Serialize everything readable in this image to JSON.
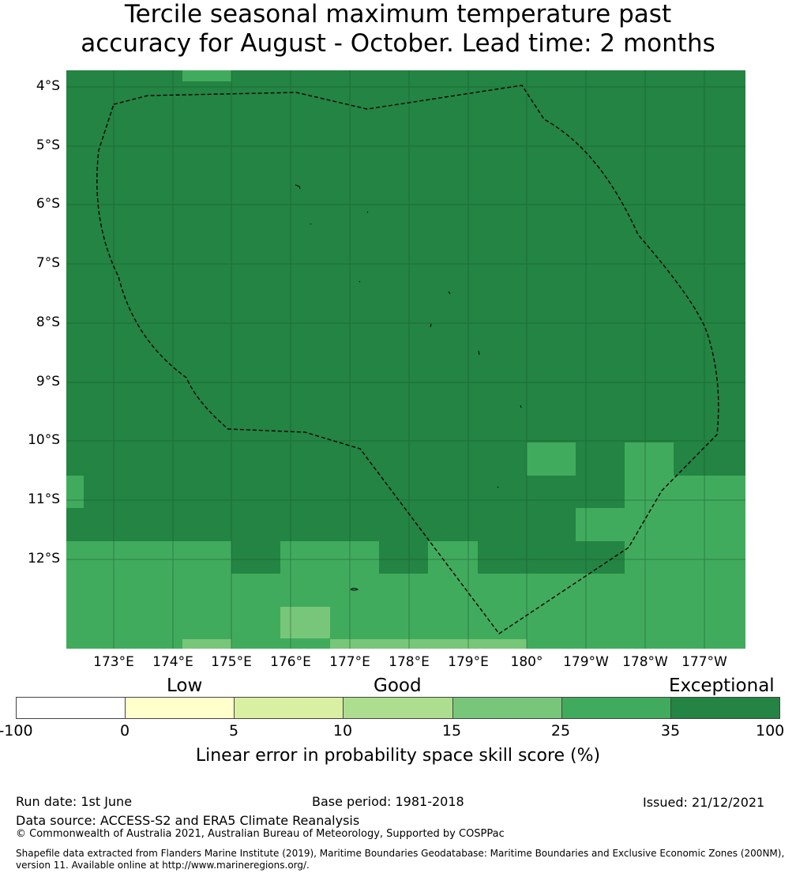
{
  "title": {
    "line1": "Tercile seasonal maximum temperature past",
    "line2": "accuracy for August - October. Lead time: 2 months"
  },
  "map": {
    "latitude_labels": [
      "4°S",
      "5°S",
      "6°S",
      "7°S",
      "8°S",
      "9°S",
      "10°S",
      "11°S",
      "12°S"
    ],
    "longitude_labels": [
      "173°E",
      "174°E",
      "175°E",
      "176°E",
      "177°E",
      "178°E",
      "179°E",
      "180°",
      "179°W",
      "178°W",
      "177°W"
    ],
    "colors": {
      "exceptional": "#238443",
      "band_25_35": "#41ab5d",
      "band_15_25": "#78c679",
      "gridline": "#1a5c2e",
      "eez_boundary": "#000000"
    }
  },
  "legend": {
    "categories": [
      "Low",
      "Good",
      "Exceptional"
    ],
    "ticks": [
      "-100",
      "0",
      "5",
      "10",
      "15",
      "25",
      "35",
      "100"
    ],
    "colors": [
      "#ffffff",
      "#ffffcc",
      "#d9f0a3",
      "#addd8e",
      "#78c679",
      "#41ab5d",
      "#238443"
    ],
    "title": "Linear error in probability space skill score (%)"
  },
  "footer": {
    "run_date": "Run date: 1st June",
    "base_period": "Base period: 1981-2018",
    "issued": "Issued: 21/12/2021",
    "data_source": "Data source: ACCESS-S2 and ERA5 Climate Reanalysis",
    "copyright": "© Commonwealth of Australia 2021, Australian Bureau of Meteorology, Supported by COSPPac",
    "shapefile_line1": "Shapefile data extracted from Flanders Marine Institute (2019), Maritime Boundaries Geodatabase: Maritime Boundaries and Exclusive Economic Zones (200NM),",
    "shapefile_line2": "version 11. Available online at http://www.marineregions.org/."
  }
}
